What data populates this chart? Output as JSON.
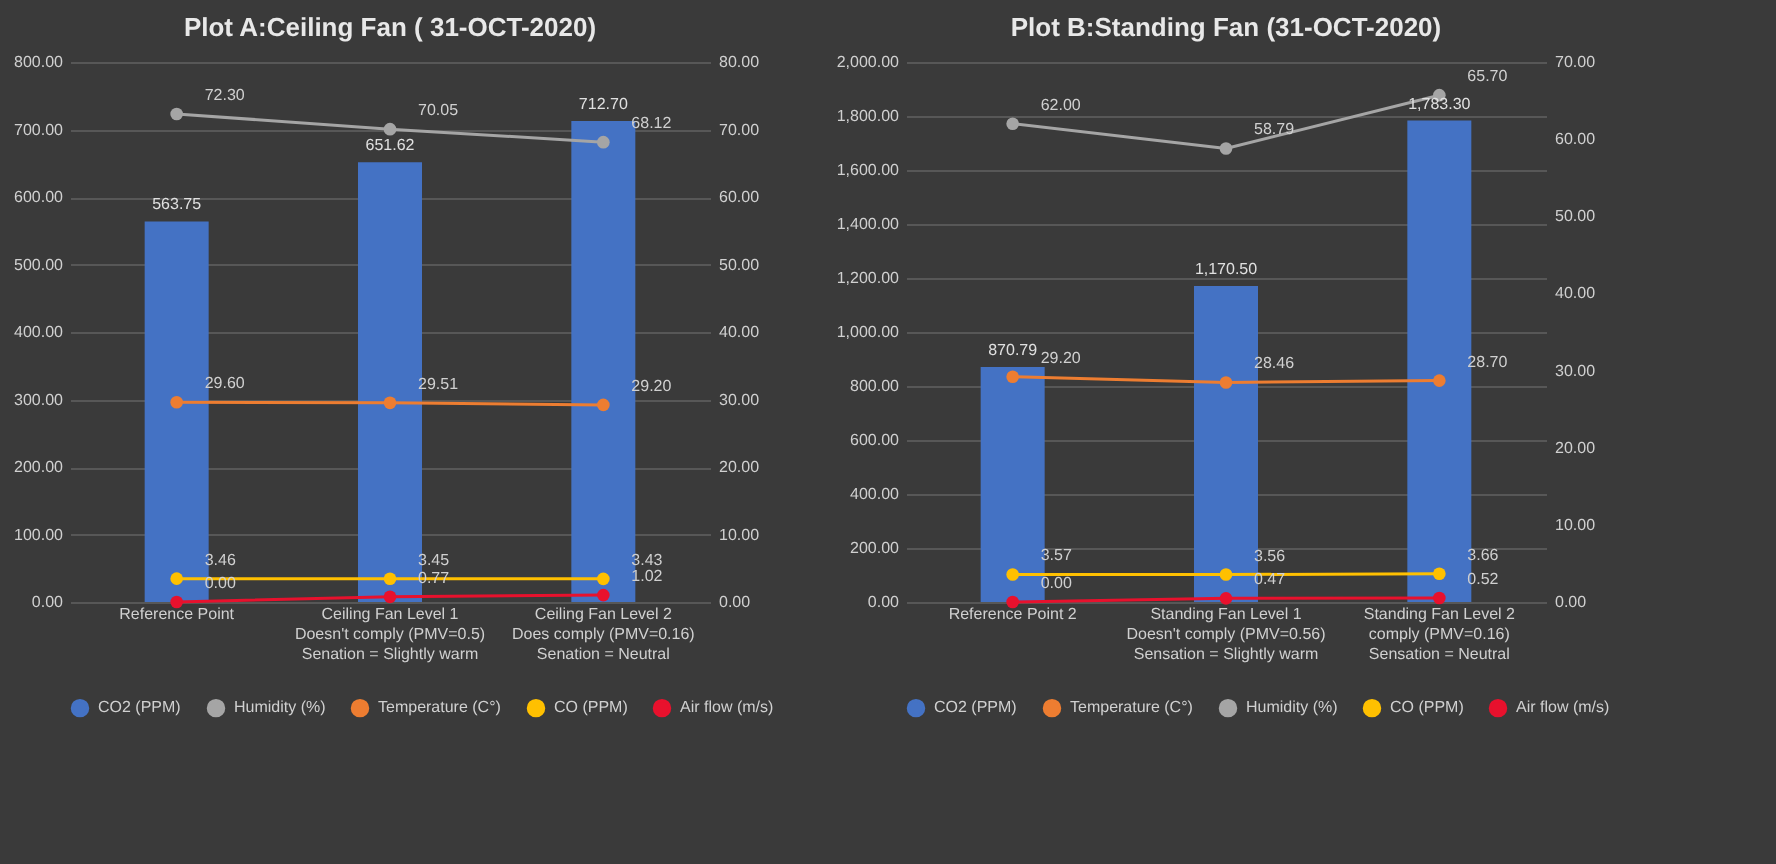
{
  "chart_data": [
    {
      "type": "bar",
      "title": "Plot A:Ceiling Fan ( 31-OCT-2020)",
      "categories": [
        "Reference Point",
        "Ceiling Fan Level 1\nDoesn't comply (PMV=0.5)\nSenation = Slightly warm",
        "Ceiling Fan Level 2\nDoes comply (PMV=0.16)\nSenation = Neutral"
      ],
      "series": [
        {
          "name": "CO2 (PPM)",
          "color": "#4472c4",
          "values": [
            563.75,
            651.62,
            712.7
          ],
          "value_labels": [
            "563.75",
            "651.62",
            "712.70"
          ]
        },
        {
          "name": "Humidity (%)",
          "type": "line",
          "axis": "y2",
          "color": "#a5a5a5",
          "values": [
            72.3,
            70.05,
            68.12
          ],
          "value_labels": [
            "72.30",
            "70.05",
            "68.12"
          ]
        },
        {
          "name": "Temperature (C°)",
          "type": "line",
          "axis": "y2",
          "color": "#ed7d31",
          "values": [
            29.6,
            29.51,
            29.2
          ],
          "value_labels": [
            "29.60",
            "29.51",
            "29.20"
          ]
        },
        {
          "name": "CO (PPM)",
          "type": "line",
          "axis": "y2",
          "color": "#ffc000",
          "values": [
            3.46,
            3.45,
            3.43
          ],
          "value_labels": [
            "3.46",
            "3.45",
            "3.43"
          ]
        },
        {
          "name": "Air flow (m/s)",
          "type": "line",
          "axis": "y2",
          "color": "#e8112d",
          "values": [
            0.0,
            0.77,
            1.02
          ],
          "value_labels": [
            "0.00",
            "0.77",
            "1.02"
          ]
        }
      ],
      "ylim": [
        0,
        800
      ],
      "yticks": [
        {
          "value": 0,
          "label": "0.00"
        },
        {
          "value": 100,
          "label": "100.00"
        },
        {
          "value": 200,
          "label": "200.00"
        },
        {
          "value": 300,
          "label": "300.00"
        },
        {
          "value": 400,
          "label": "400.00"
        },
        {
          "value": 500,
          "label": "500.00"
        },
        {
          "value": 600,
          "label": "600.00"
        },
        {
          "value": 700,
          "label": "700.00"
        },
        {
          "value": 800,
          "label": "800.00"
        }
      ],
      "y2lim": [
        0,
        80
      ],
      "y2ticks": [
        {
          "value": 0,
          "label": "0.00"
        },
        {
          "value": 10,
          "label": "10.00"
        },
        {
          "value": 20,
          "label": "20.00"
        },
        {
          "value": 30,
          "label": "30.00"
        },
        {
          "value": 40,
          "label": "40.00"
        },
        {
          "value": 50,
          "label": "50.00"
        },
        {
          "value": 60,
          "label": "60.00"
        },
        {
          "value": 70,
          "label": "70.00"
        },
        {
          "value": 80,
          "label": "80.00"
        }
      ],
      "grid": "y",
      "legend": "bottom",
      "marker": "circle"
    },
    {
      "type": "bar",
      "title": "Plot B:Standing Fan (31-OCT-2020)",
      "categories": [
        "Reference Point 2",
        "Standing Fan Level 1\nDoesn't comply (PMV=0.56)\nSensation = Slightly warm",
        "Standing Fan Level 2\ncomply (PMV=0.16)\nSensation = Neutral"
      ],
      "series": [
        {
          "name": "CO2 (PPM)",
          "color": "#4472c4",
          "values": [
            870.79,
            1170.5,
            1783.3
          ],
          "value_labels": [
            "870.79",
            "1,170.50",
            "1,783.30"
          ]
        },
        {
          "name": "Temperature (C°)",
          "type": "line",
          "axis": "y2",
          "color": "#ed7d31",
          "values": [
            29.2,
            28.46,
            28.7
          ],
          "value_labels": [
            "29.20",
            "28.46",
            "28.70"
          ]
        },
        {
          "name": "Humidity (%)",
          "type": "line",
          "axis": "y2",
          "color": "#a5a5a5",
          "values": [
            62.0,
            58.79,
            65.7
          ],
          "value_labels": [
            "62.00",
            "58.79",
            "65.70"
          ]
        },
        {
          "name": "CO (PPM)",
          "type": "line",
          "axis": "y2",
          "color": "#ffc000",
          "values": [
            3.57,
            3.56,
            3.66
          ],
          "value_labels": [
            "3.57",
            "3.56",
            "3.66"
          ]
        },
        {
          "name": "Air flow (m/s)",
          "type": "line",
          "axis": "y2",
          "color": "#e8112d",
          "values": [
            0.0,
            0.47,
            0.52
          ],
          "value_labels": [
            "0.00",
            "0.47",
            "0.52"
          ]
        }
      ],
      "ylim": [
        0,
        2000
      ],
      "yticks": [
        {
          "value": 0,
          "label": "0.00"
        },
        {
          "value": 200,
          "label": "200.00"
        },
        {
          "value": 400,
          "label": "400.00"
        },
        {
          "value": 600,
          "label": "600.00"
        },
        {
          "value": 800,
          "label": "800.00"
        },
        {
          "value": 1000,
          "label": "1,000.00"
        },
        {
          "value": 1200,
          "label": "1,200.00"
        },
        {
          "value": 1400,
          "label": "1,400.00"
        },
        {
          "value": 1600,
          "label": "1,600.00"
        },
        {
          "value": 1800,
          "label": "1,800.00"
        },
        {
          "value": 2000,
          "label": "2,000.00"
        }
      ],
      "y2lim": [
        0,
        70
      ],
      "y2ticks": [
        {
          "value": 0,
          "label": "0.00"
        },
        {
          "value": 10,
          "label": "10.00"
        },
        {
          "value": 20,
          "label": "20.00"
        },
        {
          "value": 30,
          "label": "30.00"
        },
        {
          "value": 40,
          "label": "40.00"
        },
        {
          "value": 50,
          "label": "50.00"
        },
        {
          "value": 60,
          "label": "60.00"
        },
        {
          "value": 70,
          "label": "70.00"
        }
      ],
      "grid": "y",
      "legend": "bottom",
      "marker": "circle"
    }
  ]
}
